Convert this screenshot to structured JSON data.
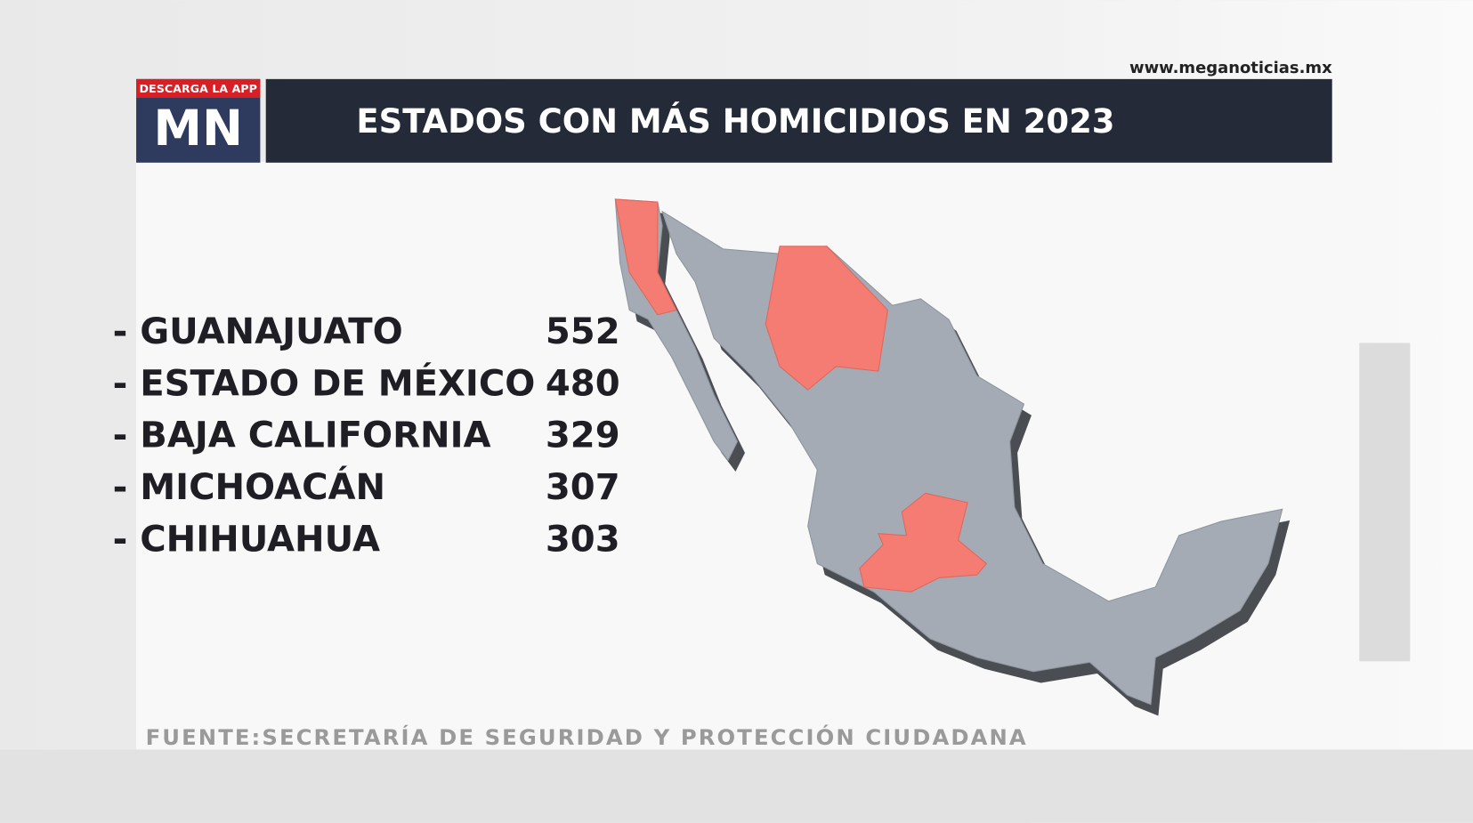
{
  "header": {
    "url": "www.meganoticias.mx",
    "badge": "DESCARGA LA APP",
    "logo": "MN",
    "title": "ESTADOS CON MÁS HOMICIDIOS EN 2023"
  },
  "list": {
    "rows": [
      {
        "label": "- GUANAJUATO",
        "value": 552
      },
      {
        "label": "- ESTADO DE MÉXICO",
        "value": 480
      },
      {
        "label": "- BAJA CALIFORNIA",
        "value": 329
      },
      {
        "label": "- MICHOACÁN",
        "value": 307
      },
      {
        "label": "- CHIHUAHUA",
        "value": 303
      }
    ]
  },
  "source": "FUENTE:SECRETARÍA DE SEGURIDAD Y PROTECCIÓN CIUDADANA"
}
